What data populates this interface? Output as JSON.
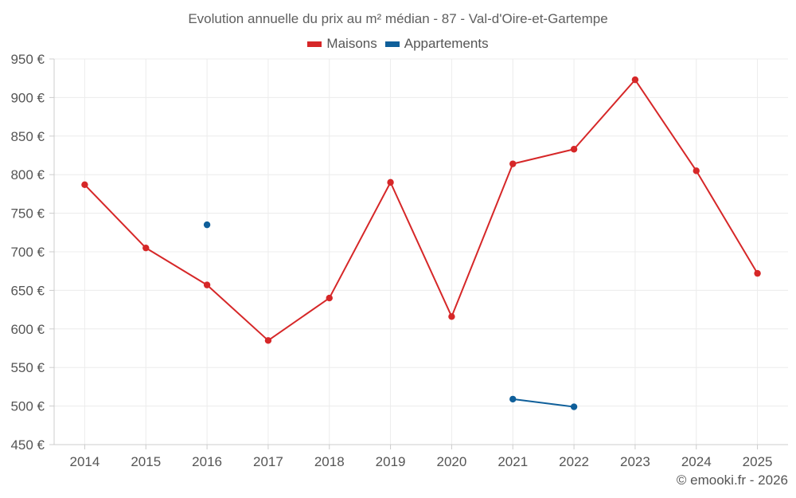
{
  "chart_data": {
    "type": "line",
    "title": "Evolution annuelle du prix au m² médian - 87 - Val-d'Oire-et-Gartempe",
    "xlabel": "",
    "ylabel": "",
    "categories": [
      "2014",
      "2015",
      "2016",
      "2017",
      "2018",
      "2019",
      "2020",
      "2021",
      "2022",
      "2023",
      "2024",
      "2025"
    ],
    "ylim": [
      450,
      950
    ],
    "yticks": [
      450,
      500,
      550,
      600,
      650,
      700,
      750,
      800,
      850,
      900,
      950
    ],
    "y_tick_suffix": " €",
    "grid": true,
    "legend_position": "top-center",
    "series": [
      {
        "name": "Maisons",
        "color": "#d62728",
        "values": [
          787,
          705,
          657,
          585,
          640,
          790,
          616,
          814,
          833,
          923,
          805,
          672
        ]
      },
      {
        "name": "Appartements",
        "color": "#0f5f9a",
        "values": [
          null,
          null,
          735,
          null,
          null,
          null,
          null,
          509,
          499,
          null,
          null,
          null
        ]
      }
    ]
  },
  "credit": "© emooki.fr - 2026"
}
